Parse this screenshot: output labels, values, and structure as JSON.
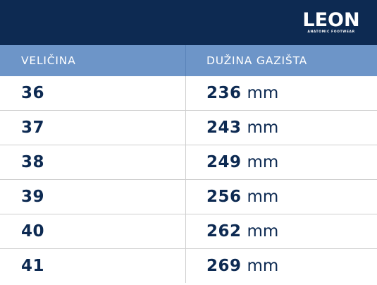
{
  "brand": {
    "logo_word": "LEON",
    "logo_tagline": "ANATOMIC FOOTWEAR"
  },
  "table": {
    "headers": [
      "VELIČINA",
      "DUŽINA GAZIŠTA"
    ],
    "rows": [
      {
        "size": "36",
        "length": "236",
        "unit": "mm"
      },
      {
        "size": "37",
        "length": "243",
        "unit": "mm"
      },
      {
        "size": "38",
        "length": "249",
        "unit": "mm"
      },
      {
        "size": "39",
        "length": "256",
        "unit": "mm"
      },
      {
        "size": "40",
        "length": "262",
        "unit": "mm"
      },
      {
        "size": "41",
        "length": "269",
        "unit": "mm"
      }
    ]
  },
  "colors": {
    "navy": "#0d2a52",
    "header_blue": "#6d95c8",
    "divider": "#cfcfcf"
  }
}
